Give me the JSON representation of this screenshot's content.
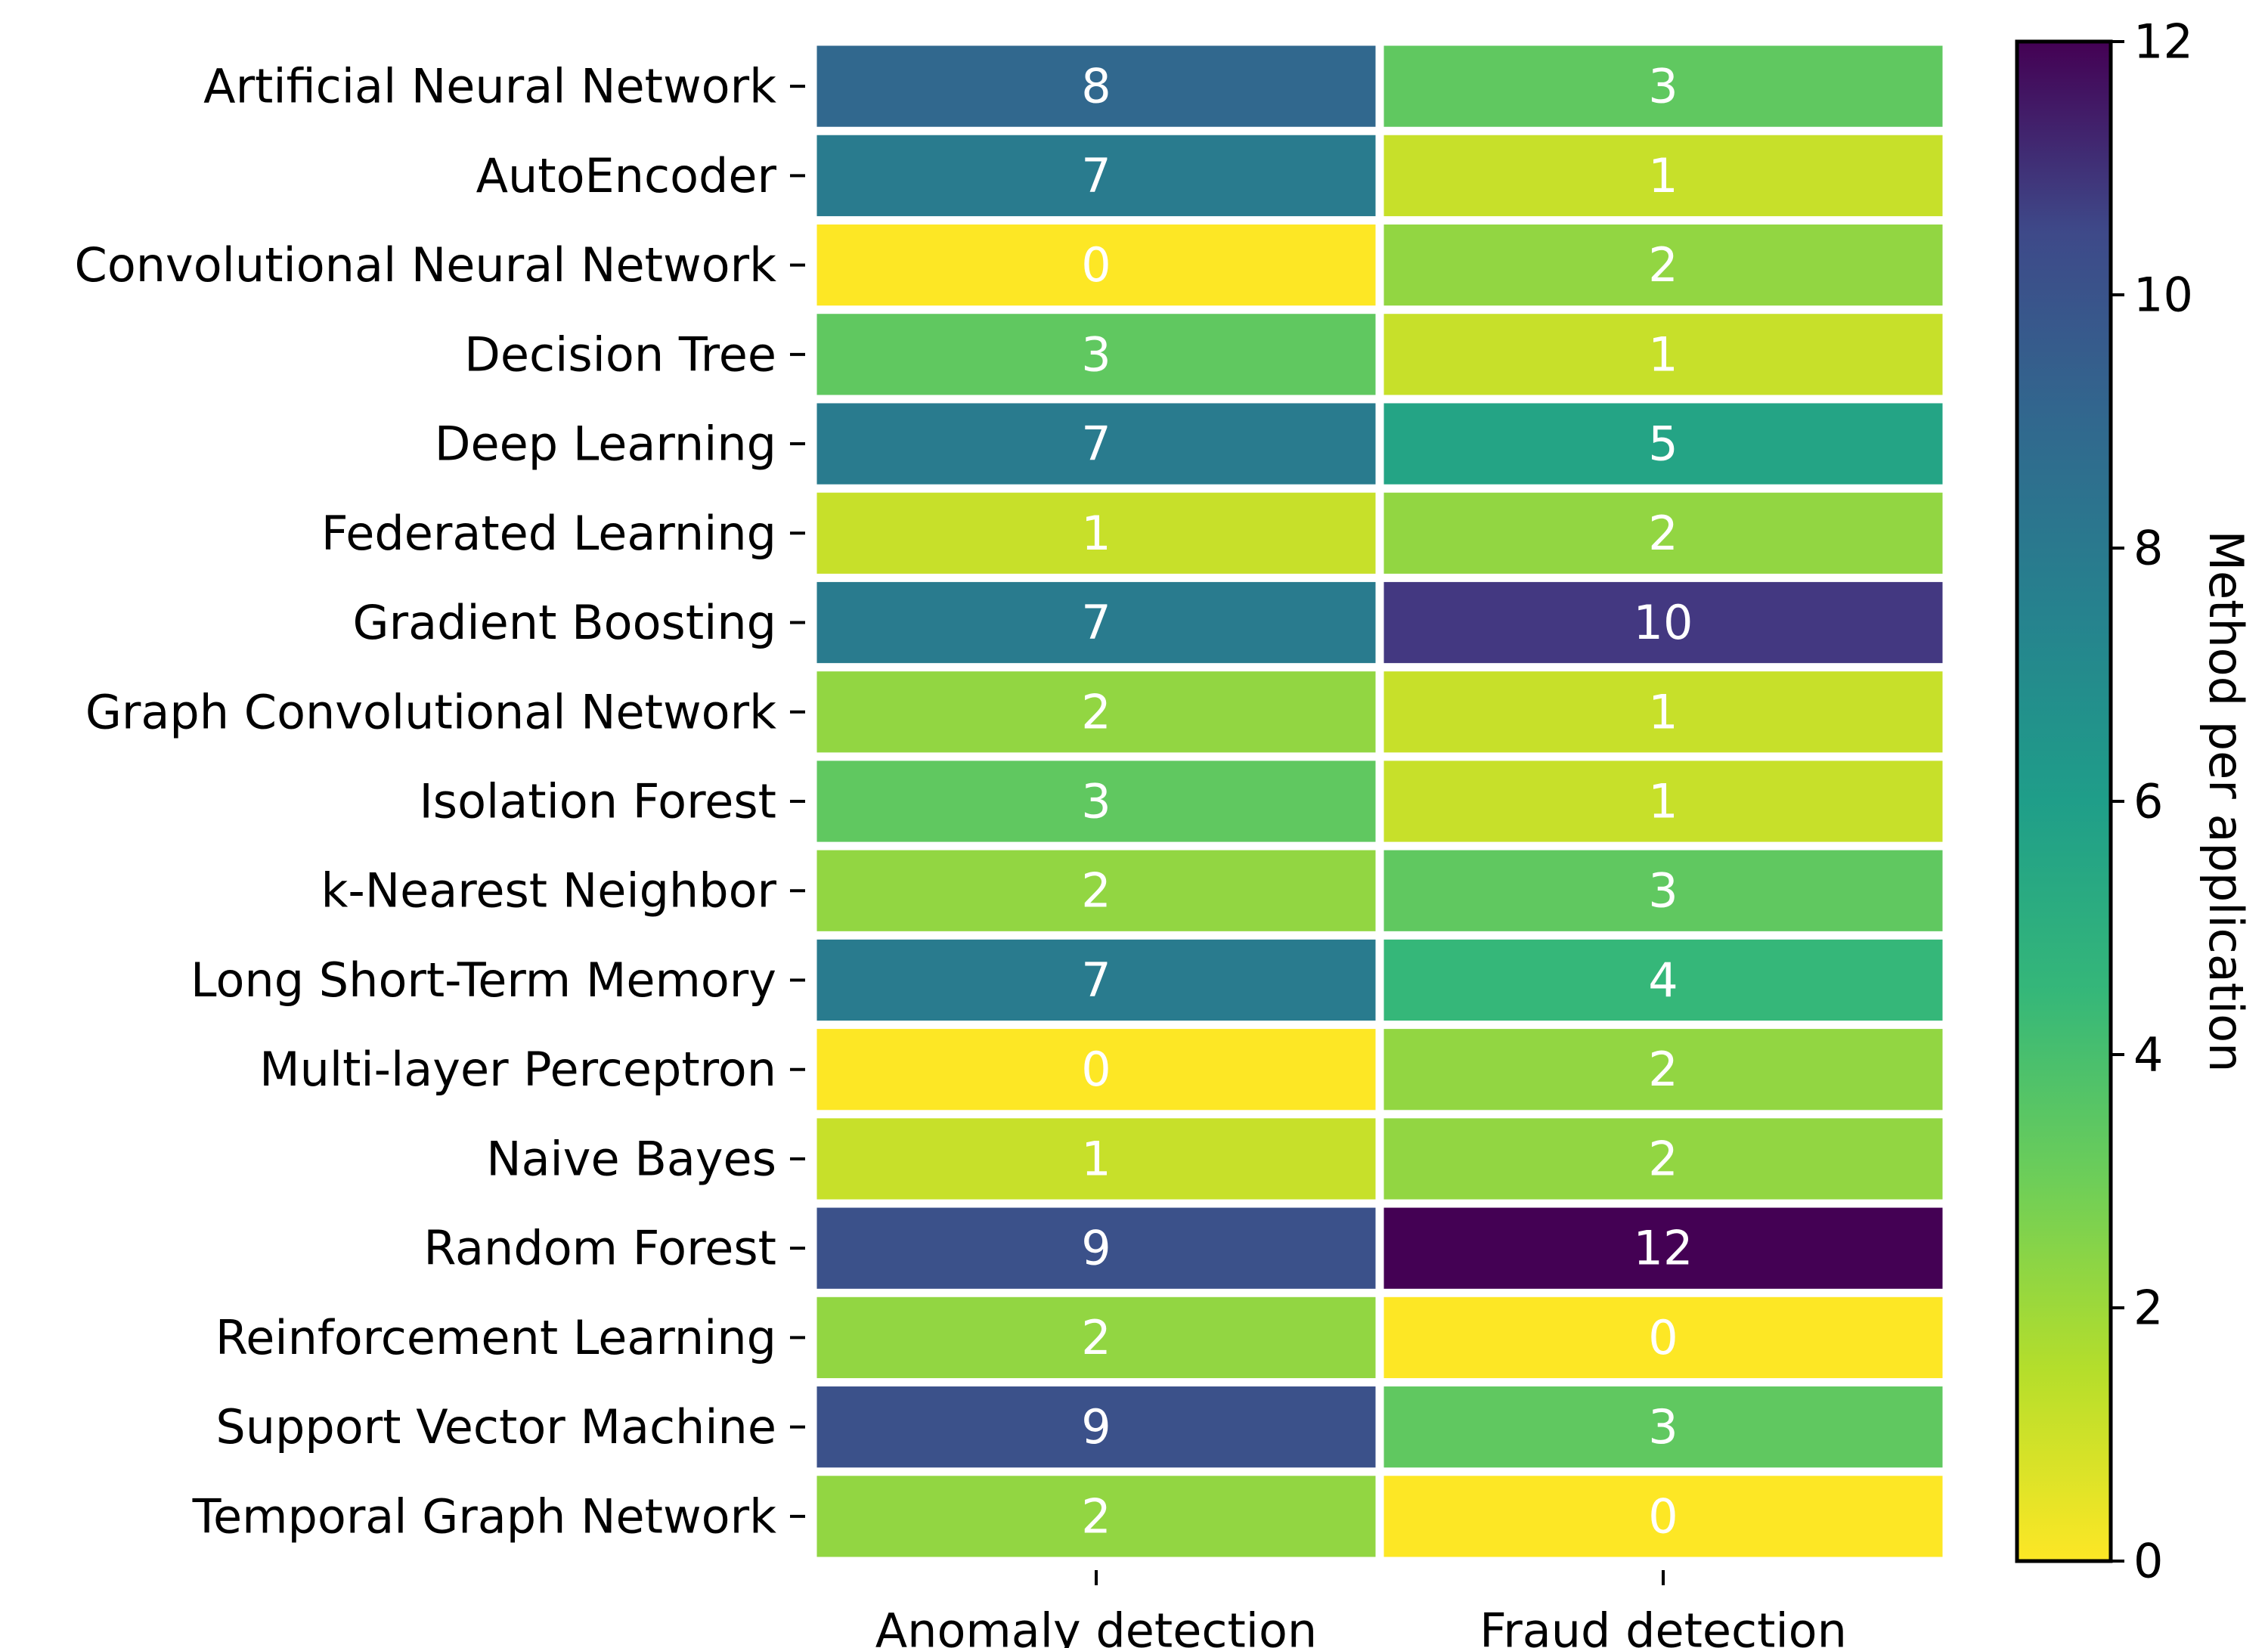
{
  "chart_data": {
    "type": "heatmap",
    "title": "",
    "rows": [
      "Artificial Neural Network",
      "AutoEncoder",
      "Convolutional Neural Network",
      "Decision Tree",
      "Deep Learning",
      "Federated Learning",
      "Gradient Boosting",
      "Graph Convolutional Network",
      "Isolation Forest",
      "k-Nearest Neighbor",
      "Long Short-Term Memory",
      "Multi-layer Perceptron",
      "Naive Bayes",
      "Random Forest",
      "Reinforcement Learning",
      "Support Vector Machine",
      "Temporal Graph Network"
    ],
    "columns": [
      "Anomaly detection",
      "Fraud detection"
    ],
    "values": [
      [
        8,
        3
      ],
      [
        7,
        1
      ],
      [
        0,
        2
      ],
      [
        3,
        1
      ],
      [
        7,
        5
      ],
      [
        1,
        2
      ],
      [
        7,
        10
      ],
      [
        2,
        1
      ],
      [
        3,
        1
      ],
      [
        2,
        3
      ],
      [
        7,
        4
      ],
      [
        0,
        2
      ],
      [
        1,
        2
      ],
      [
        9,
        12
      ],
      [
        2,
        0
      ],
      [
        9,
        3
      ],
      [
        2,
        0
      ]
    ],
    "colorbar": {
      "label": "Method per application",
      "range": [
        0,
        12
      ],
      "ticks": [
        "0",
        "2",
        "4",
        "6",
        "8",
        "10",
        "12"
      ],
      "colormap": "viridis_r"
    }
  }
}
